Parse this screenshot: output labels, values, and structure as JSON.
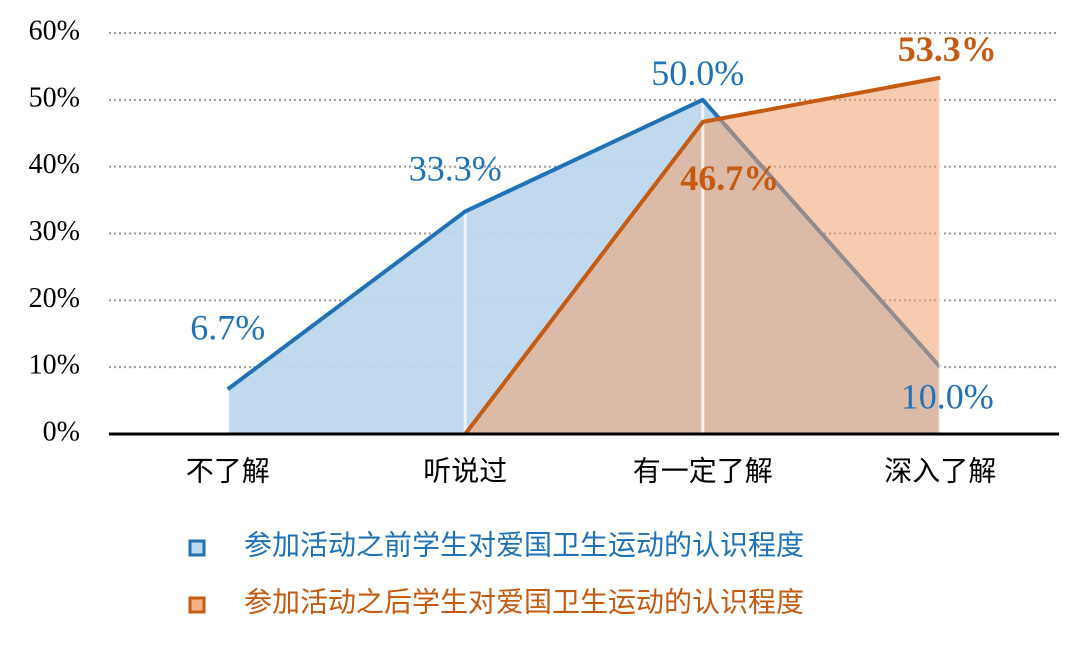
{
  "chart_data": {
    "type": "area",
    "categories": [
      "不了解",
      "听说过",
      "有一定了解",
      "深入了解"
    ],
    "series": [
      {
        "name": "参加活动之前学生对爱国卫生运动的认识程度",
        "color": "#1f72b8",
        "values": [
          6.7,
          33.3,
          50.0,
          10.0
        ],
        "value_labels": [
          "6.7%",
          "33.3%",
          "50.0%",
          "10.0%"
        ]
      },
      {
        "name": "参加活动之后学生对爱国卫生运动的认识程度",
        "color": "#c55a11",
        "values": [
          0,
          0,
          46.7,
          53.3
        ],
        "value_labels": [
          null,
          null,
          "46.7%",
          "53.3%"
        ]
      }
    ],
    "ylim": [
      0,
      60
    ],
    "yticks": [
      {
        "value": 0,
        "label": "0%"
      },
      {
        "value": 10,
        "label": "10%"
      },
      {
        "value": 20,
        "label": "20%"
      },
      {
        "value": 30,
        "label": "30%"
      },
      {
        "value": 40,
        "label": "40%"
      },
      {
        "value": 50,
        "label": "50%"
      },
      {
        "value": 60,
        "label": "60%"
      }
    ],
    "grid": true
  }
}
